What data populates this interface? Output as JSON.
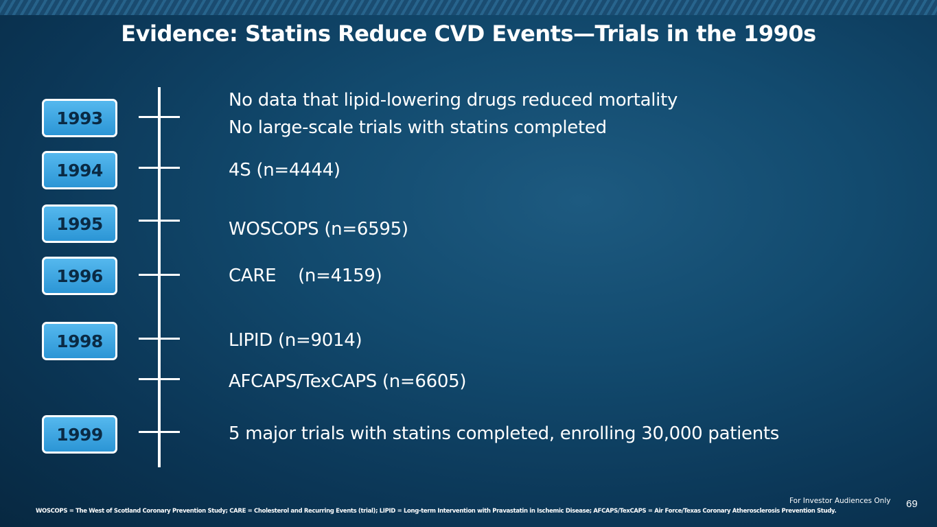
{
  "slide": {
    "title": "Evidence: Statins Reduce CVD Events—Trials in the 1990s",
    "footnote": "WOSCOPS = The West of Scotland Coronary Prevention Study; CARE = Cholesterol and Recurring Events (trial); LIPID = Long-term Intervention with Pravastatin in Ischemic Disease; AFCAPS/TexCAPS = Air Force/Texas Coronary Atherosclerosis Prevention Study.",
    "disclaimer": "For Investor Audiences Only",
    "page_number": "69"
  },
  "timeline": {
    "years": [
      "1993",
      "1994",
      "1995",
      "1996",
      "1998",
      "1999"
    ],
    "entries": [
      "No data that lipid-lowering drugs reduced mortality",
      "No large-scale trials with statins completed",
      "4S (n=4444)",
      "WOSCOPS (n=6595)",
      "CARE    (n=4159)",
      "LIPID (n=9014)",
      "AFCAPS/TexCAPS (n=6605)",
      "5 major trials with statins completed, enrolling 30,000 patients"
    ]
  }
}
